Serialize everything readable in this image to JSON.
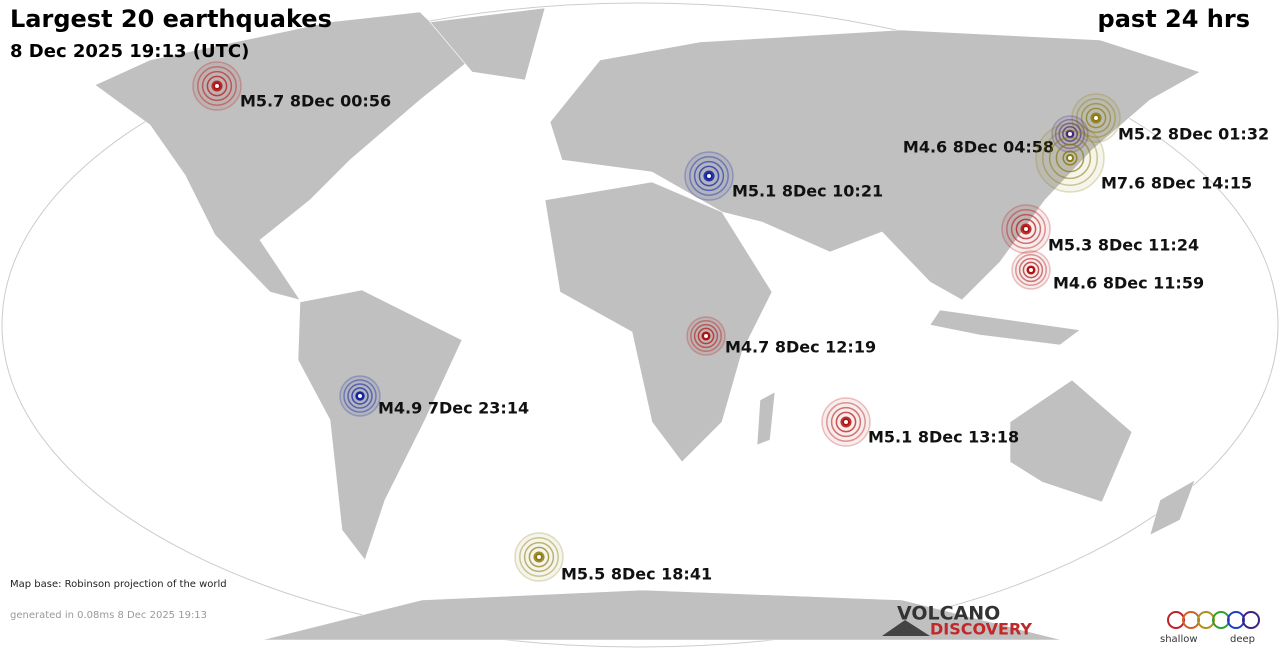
{
  "header": {
    "title": "Largest 20 earthquakes",
    "period": "past 24 hrs",
    "datetime": "8 Dec 2025 19:13 (UTC)"
  },
  "quakes": [
    {
      "label": "M5.7  8Dec 00:56",
      "color": "#b01010"
    },
    {
      "label": "M5.2  8Dec 01:32",
      "color": "#8a7a10"
    },
    {
      "label": "M4.6  8Dec 04:58",
      "color": "#402080"
    },
    {
      "label": "M7.6  8Dec 14:15",
      "color": "#8a7a10"
    },
    {
      "label": "M5.1  8Dec 10:21",
      "color": "#1020a0"
    },
    {
      "label": "M5.3  8Dec 11:24",
      "color": "#b01010"
    },
    {
      "label": "M4.6  8Dec 11:59",
      "color": "#b01010"
    },
    {
      "label": "M4.7  8Dec 12:19",
      "color": "#b01010"
    },
    {
      "label": "M4.9  7Dec 23:14",
      "color": "#1020a0"
    },
    {
      "label": "M5.1  8Dec 13:18",
      "color": "#b01010"
    },
    {
      "label": "M5.5  8Dec 18:41",
      "color": "#8a7a10"
    }
  ],
  "footer": {
    "map_base": "Map base: Robinson projection of the world",
    "generated": "generated in 0.08ms  8 Dec 2025 19:13"
  },
  "logo": {
    "line1": "VOLCANO",
    "line2": "DISCOVERY"
  },
  "legend": {
    "shallow": "shallow",
    "deep": "deep"
  }
}
